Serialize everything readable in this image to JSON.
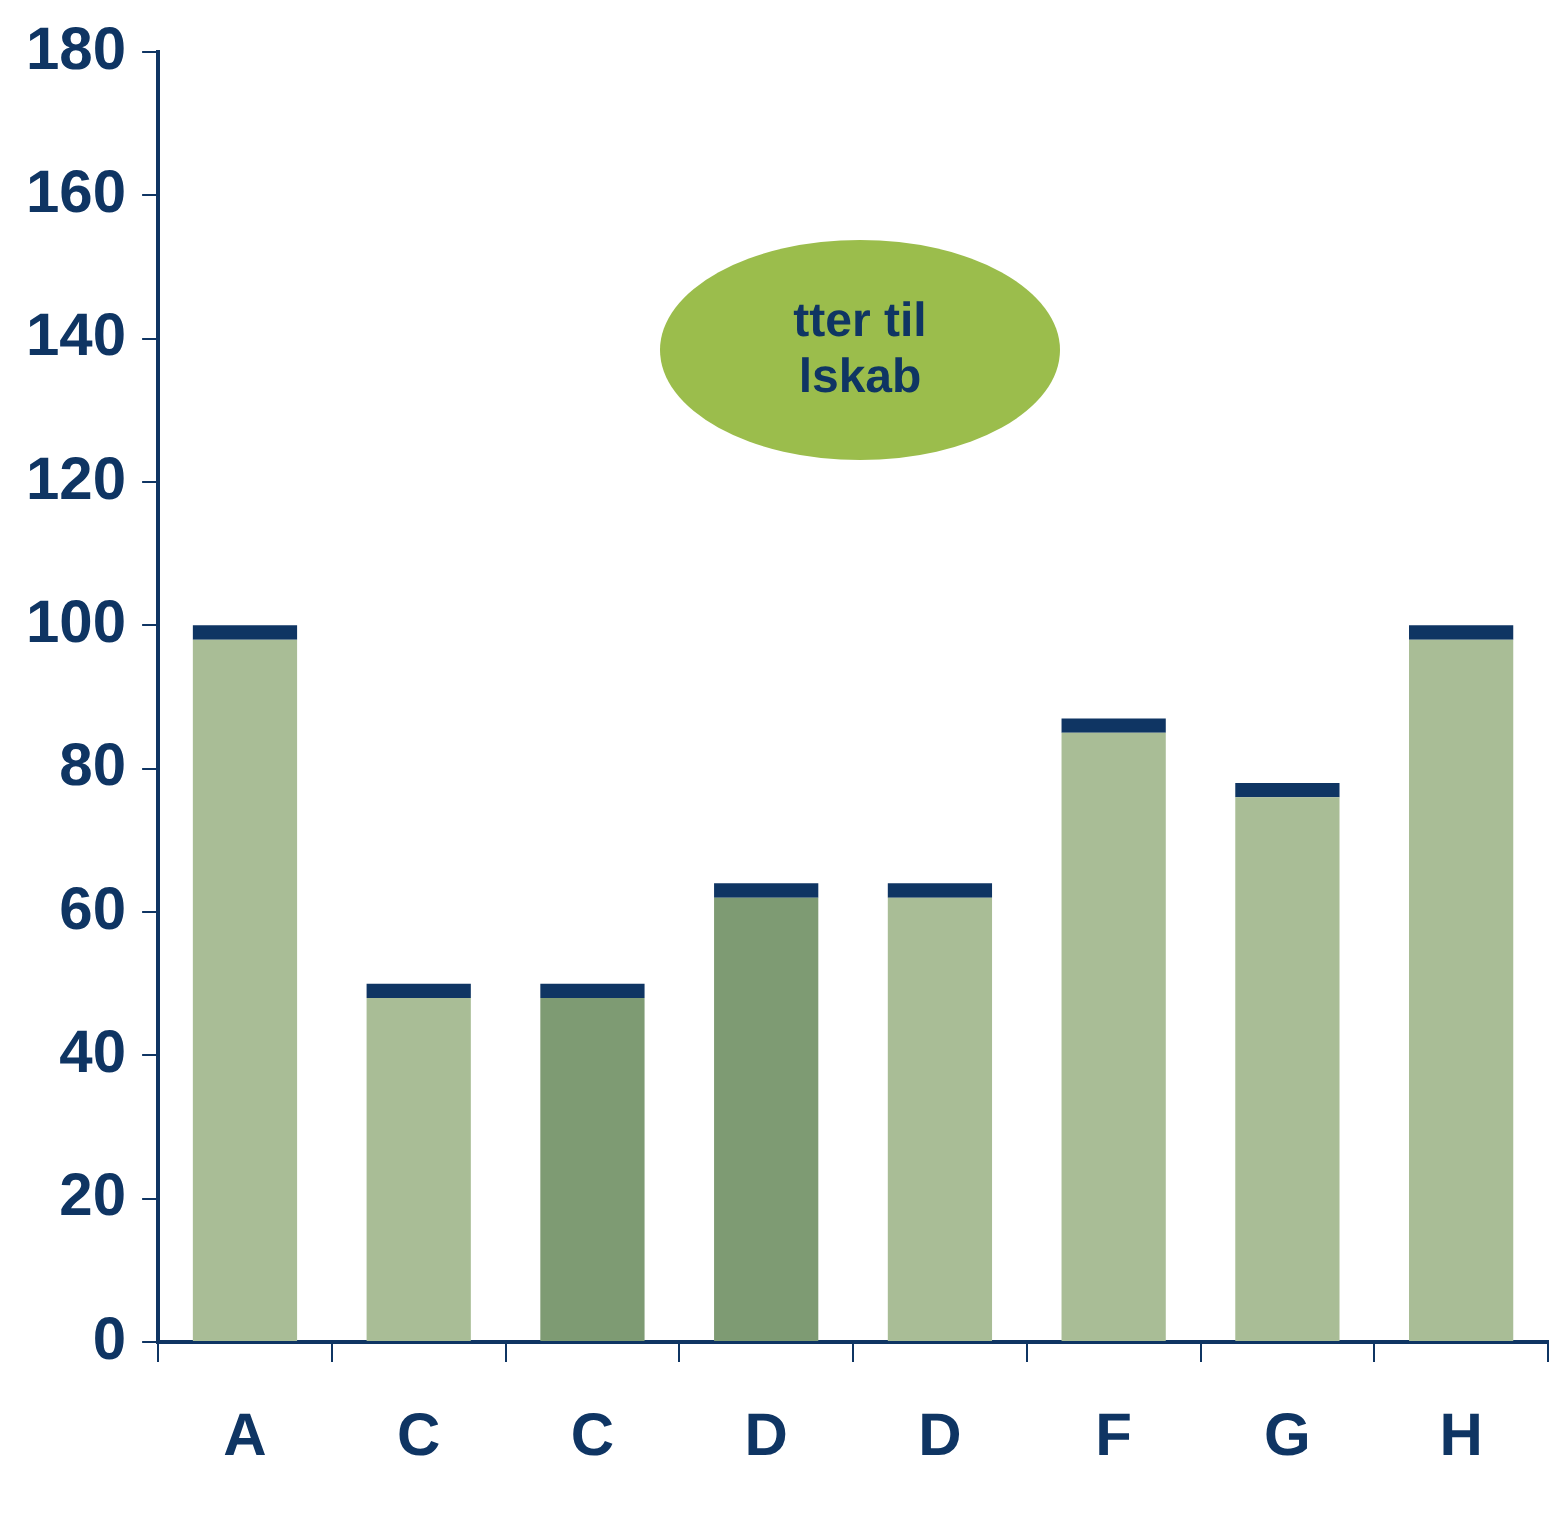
{
  "chart_data": {
    "type": "bar",
    "categories": [
      "A",
      "C",
      "C",
      "D",
      "D",
      "F",
      "G",
      "H"
    ],
    "stacked": true,
    "series": [
      {
        "colors": [
          "#a9bd96",
          "#a9bd96",
          "#7e9b73",
          "#7e9b73",
          "#a9bd96",
          "#a9bd96",
          "#a9bd96",
          "#a9bd96"
        ],
        "values": [
          98,
          48,
          48,
          62,
          62,
          85,
          76,
          98
        ]
      },
      {
        "color": "#0f3563",
        "values": [
          2,
          2,
          2,
          2,
          2,
          2,
          2,
          2
        ]
      }
    ],
    "ylim": [
      0,
      180
    ],
    "yticks": [
      0,
      20,
      40,
      60,
      80,
      100,
      120,
      140,
      160,
      180
    ],
    "grid": false,
    "legend": false,
    "annotations": [
      "tter til",
      "lskab"
    ]
  }
}
